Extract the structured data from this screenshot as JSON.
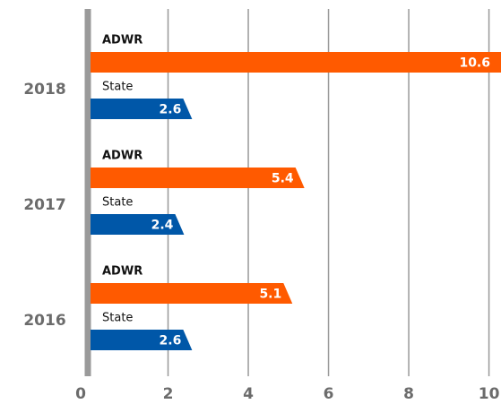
{
  "chart_data": {
    "type": "hbar",
    "categories": [
      "2018",
      "2017",
      "2016"
    ],
    "series": [
      {
        "name": "ADWR",
        "color": "#ff5a00",
        "values": [
          10.6,
          5.4,
          5.1
        ]
      },
      {
        "name": "State",
        "color": "#0057a8",
        "values": [
          2.6,
          2.4,
          2.6
        ]
      }
    ],
    "xlim": [
      0,
      10.3
    ],
    "xticks": [
      0,
      2,
      4,
      6,
      8,
      10
    ],
    "grid": true
  }
}
